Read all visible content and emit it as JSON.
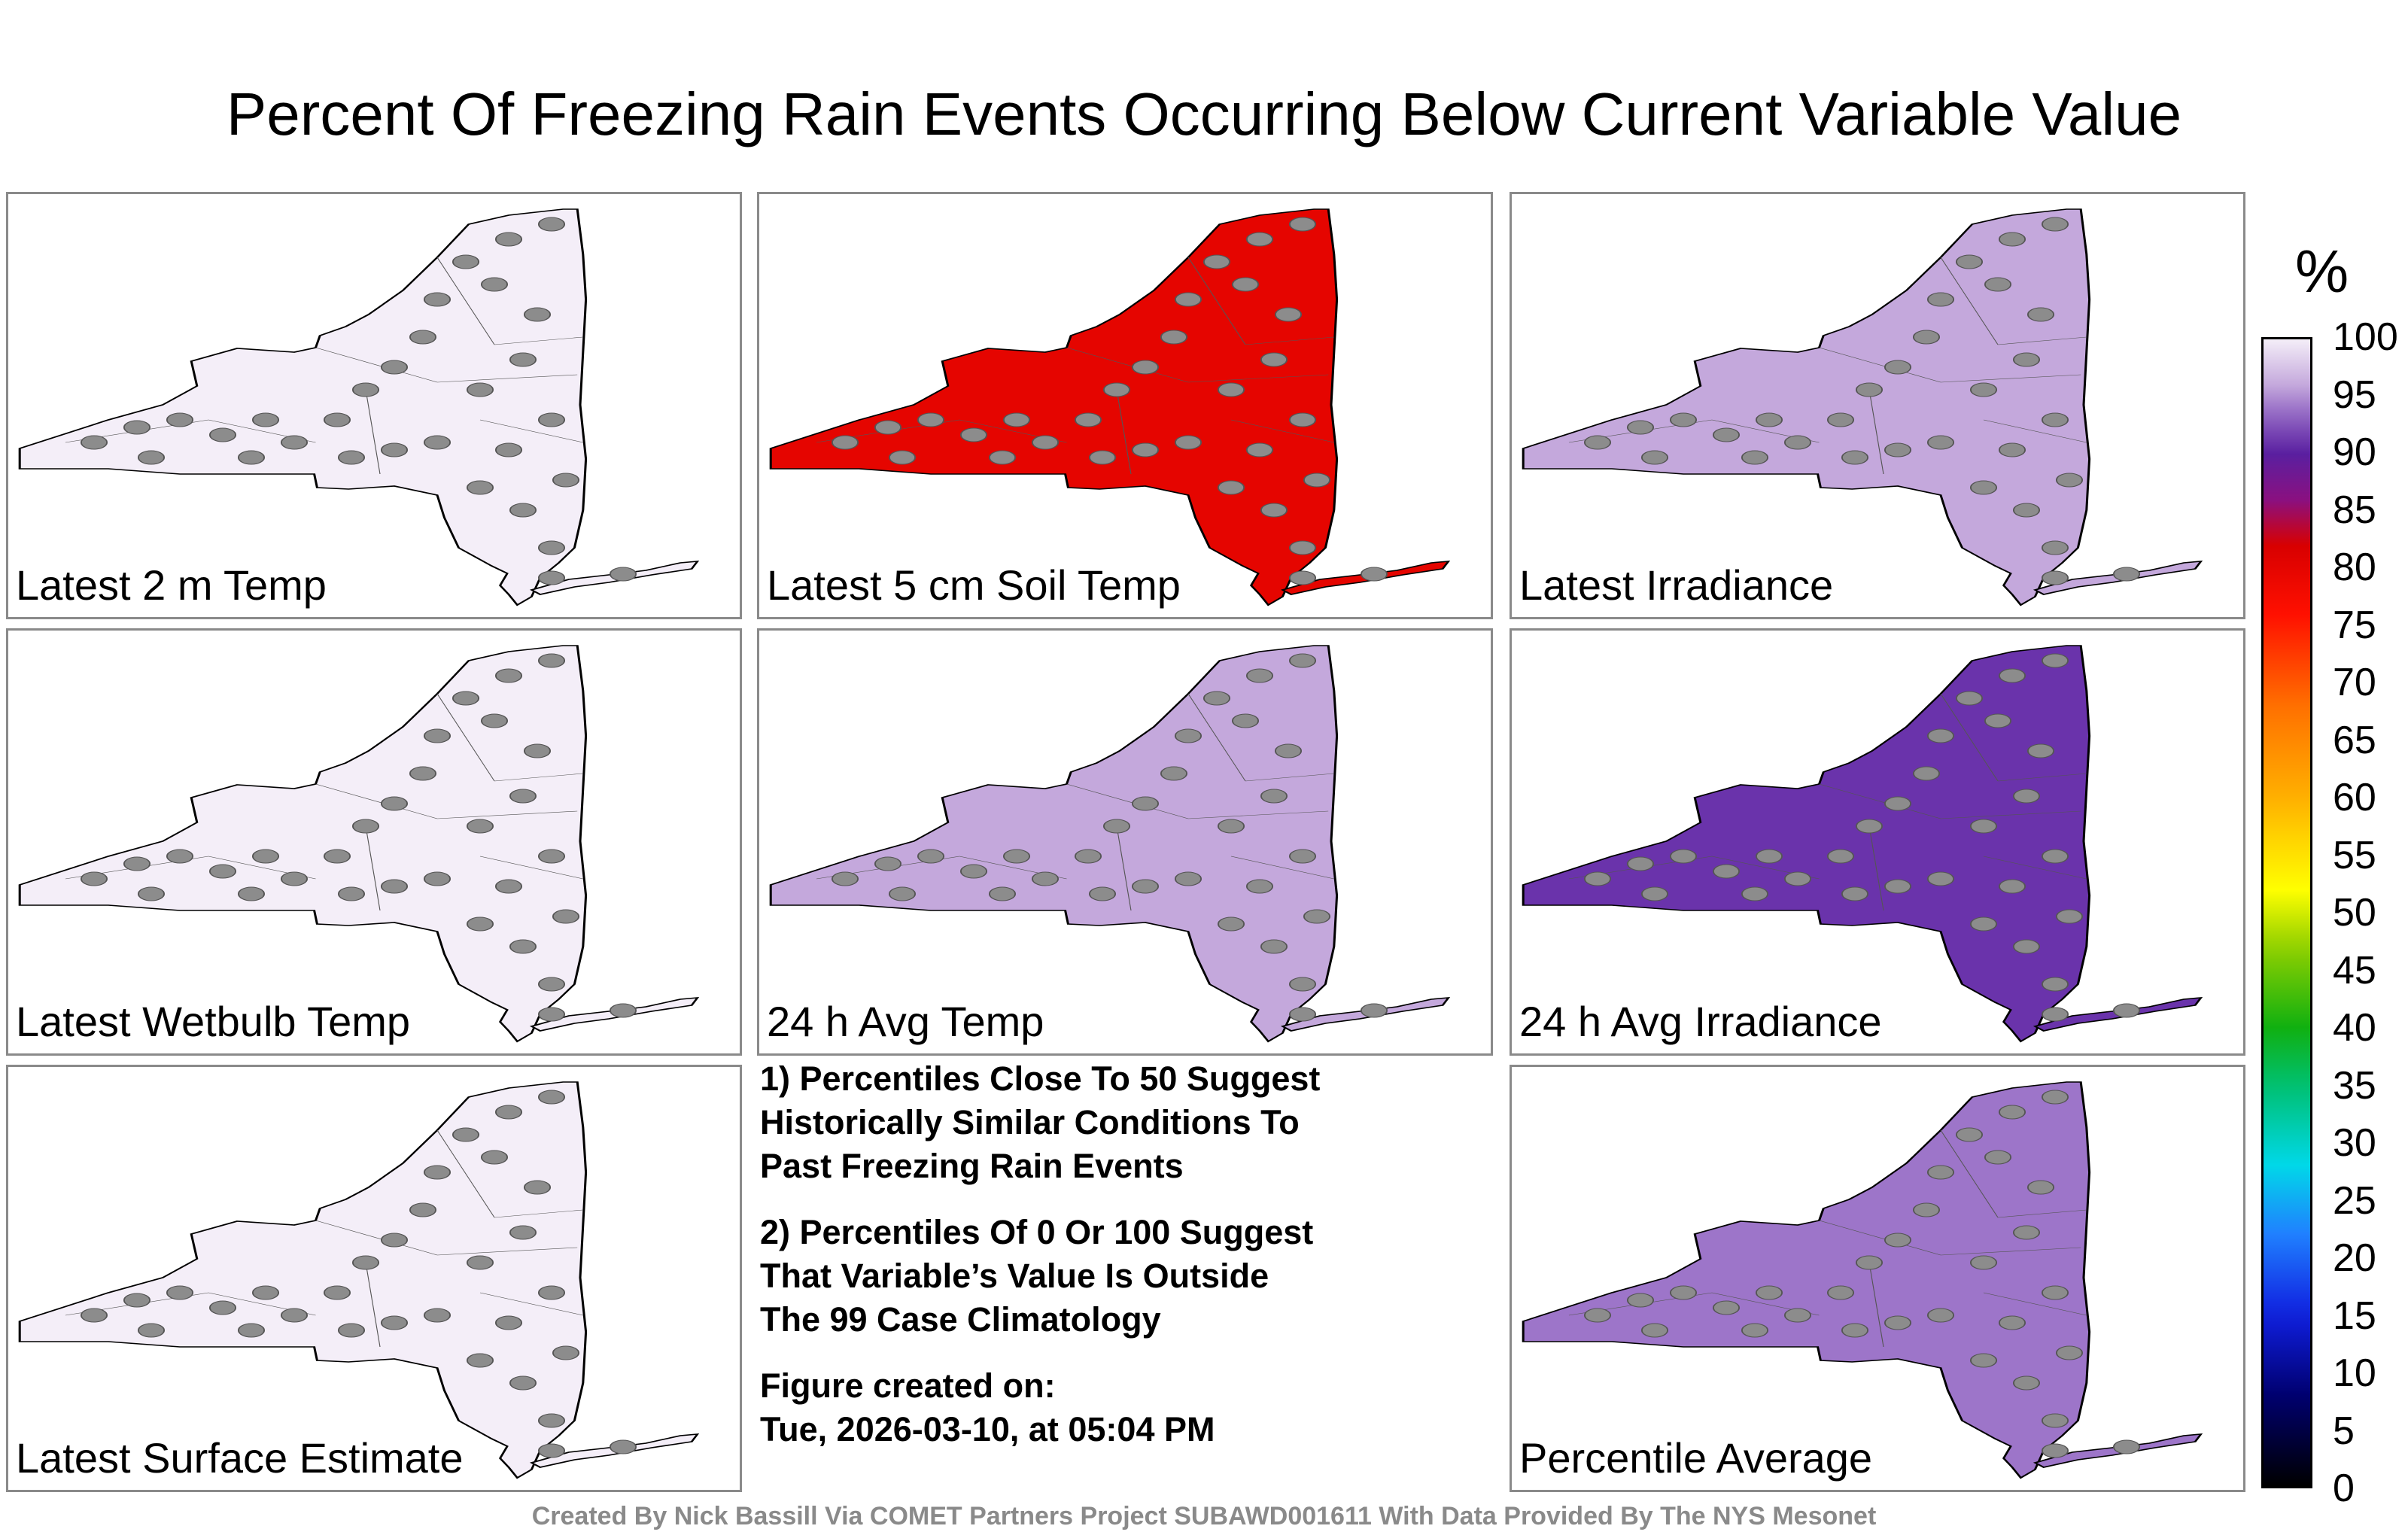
{
  "title": "Percent Of Freezing Rain Events Occurring Below Current Variable Value",
  "panels": [
    {
      "label": "Latest 2 m Temp",
      "value": 100
    },
    {
      "label": "Latest 5 cm Soil Temp",
      "value": 80
    },
    {
      "label": "Latest Irradiance",
      "value": 96
    },
    {
      "label": "Latest Wetbulb Temp",
      "value": 100
    },
    {
      "label": "24 h Avg Temp",
      "value": 96
    },
    {
      "label": "24 h Avg Irradiance",
      "value": 91
    },
    {
      "label": "Latest Surface Estimate",
      "value": 100
    },
    {
      "label": "Percentile Average",
      "value": 94
    }
  ],
  "notes": {
    "note1": "1) Percentiles Close To 50 Suggest\nHistorically Similar Conditions To\nPast Freezing Rain Events",
    "note2": "2) Percentiles Of 0 Or 100 Suggest\nThat Variable’s Value Is Outside\nThe 99 Case Climatology",
    "created": "Figure created on:\nTue, 2026-03-10, at 05:04 PM"
  },
  "colorbar": {
    "unit": "%",
    "ticks": [
      "100",
      "95",
      "90",
      "85",
      "80",
      "75",
      "70",
      "65",
      "60",
      "55",
      "50",
      "45",
      "40",
      "35",
      "30",
      "25",
      "20",
      "15",
      "10",
      "5",
      "0"
    ]
  },
  "credits": "Created By Nick Bassill Via COMET Partners Project SUBAWD001611 With Data Provided By The NYS Mesonet"
}
